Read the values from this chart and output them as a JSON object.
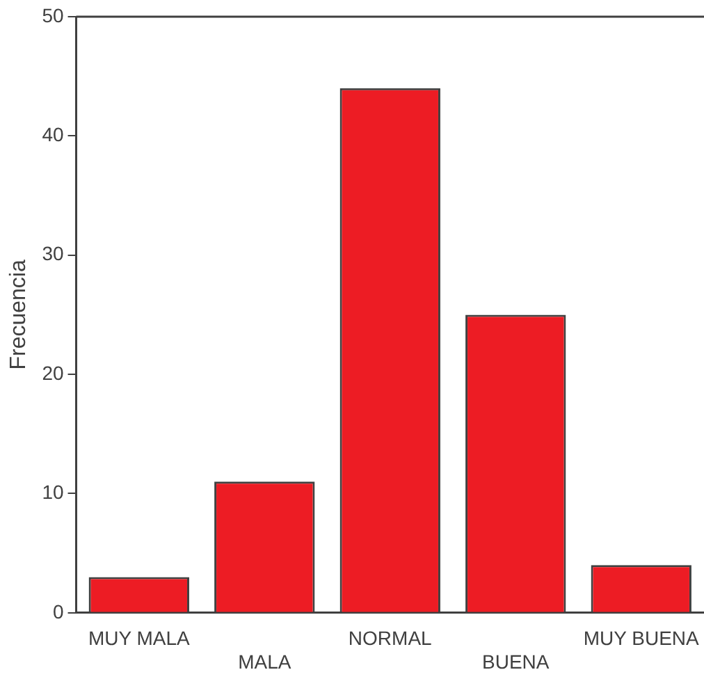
{
  "chart_data": {
    "type": "bar",
    "ylabel": "Frecuencia",
    "categories": [
      "MUY MALA",
      "MALA",
      "NORMAL",
      "BUENA",
      "MUY BUENA"
    ],
    "values": [
      3,
      11,
      44,
      25,
      4
    ],
    "color": "#ed1c24",
    "ylim": [
      0,
      50
    ],
    "yticks": [
      0,
      10,
      20,
      30,
      40,
      50
    ],
    "grid": false,
    "legend": false
  }
}
